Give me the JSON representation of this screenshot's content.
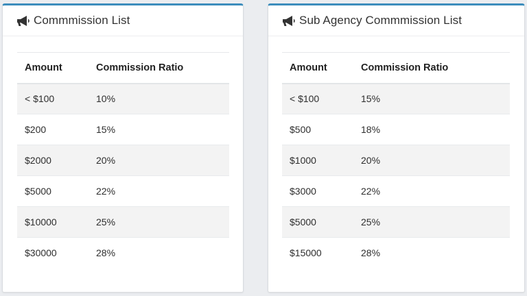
{
  "panels": [
    {
      "title": "Commmission List",
      "icon": "megaphone-icon",
      "columns": [
        "Amount",
        "Commission Ratio"
      ],
      "rows": [
        [
          "< $100",
          "10%"
        ],
        [
          "$200",
          "15%"
        ],
        [
          "$2000",
          "20%"
        ],
        [
          "$5000",
          "22%"
        ],
        [
          "$10000",
          "25%"
        ],
        [
          "$30000",
          "28%"
        ]
      ]
    },
    {
      "title": "Sub Agency Commmission List",
      "icon": "megaphone-icon",
      "columns": [
        "Amount",
        "Commission Ratio"
      ],
      "rows": [
        [
          "< $100",
          "15%"
        ],
        [
          "$500",
          "18%"
        ],
        [
          "$1000",
          "20%"
        ],
        [
          "$3000",
          "22%"
        ],
        [
          "$5000",
          "25%"
        ],
        [
          "$15000",
          "28%"
        ]
      ]
    }
  ],
  "colors": {
    "accent": "#3c8dbc",
    "stripe": "#f3f3f3"
  }
}
